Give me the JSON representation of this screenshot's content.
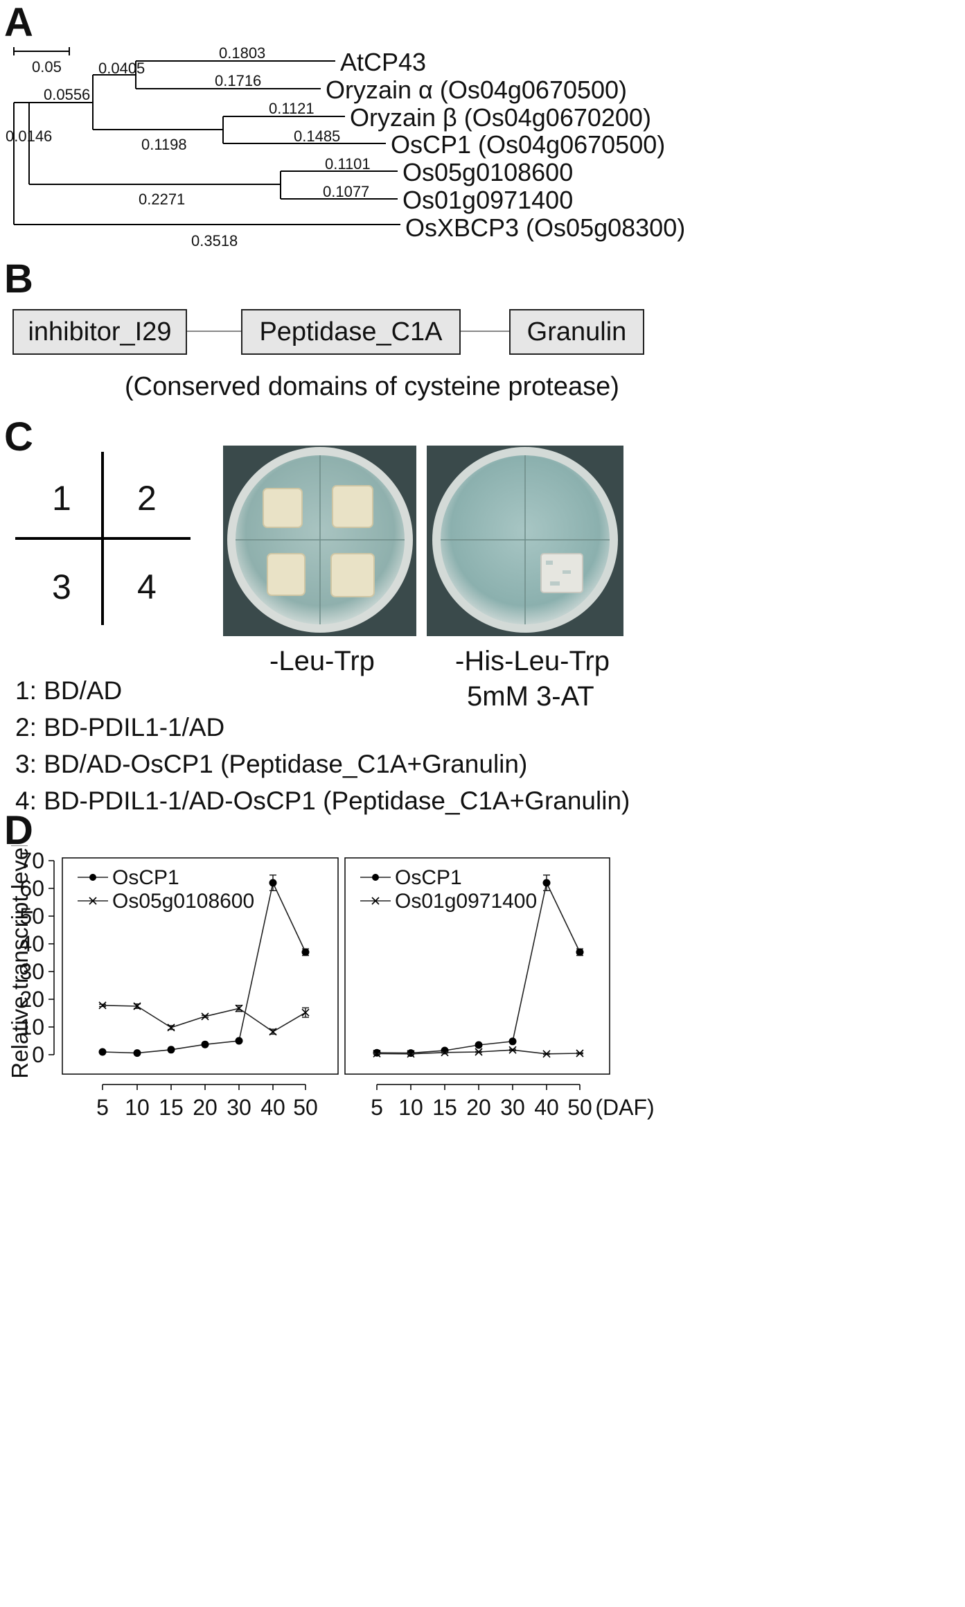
{
  "panels": {
    "A": "A",
    "B": "B",
    "C": "C",
    "D": "D"
  },
  "tree": {
    "scale_value": "0.05",
    "leaves": [
      "AtCP43",
      "Oryzain α (Os04g0670500)",
      "Oryzain β (Os04g0670200)",
      "OsCP1 (Os04g0670500)",
      "Os05g0108600",
      "Os01g0971400",
      "OsXBCP3 (Os05g08300)"
    ],
    "branch_lengths": {
      "atcp43": "0.1803",
      "oryzain_alpha": "0.1716",
      "ab_clade": "0.0405",
      "oryzain_beta": "0.1121",
      "oscp1": "0.1485",
      "bo_clade": "0.1198",
      "upper_clade": "0.0556",
      "os05g": "0.1101",
      "os01g": "0.1077",
      "os_pair": "0.2271",
      "root_inner": "0.0146",
      "osxbcp3": "0.3518"
    }
  },
  "domains": {
    "boxes": [
      "inhibitor_I29",
      "Peptidase_C1A",
      "Granulin"
    ],
    "caption": "(Conserved domains of cysteine protease)"
  },
  "y2h": {
    "quadrants": [
      "1",
      "2",
      "3",
      "4"
    ],
    "plate_labels": {
      "left": "-Leu-Trp",
      "right_line1": "-His-Leu-Trp",
      "right_line2": "5mM 3-AT"
    },
    "legend": [
      "1: BD/AD",
      "2: BD-PDIL1-1/AD",
      "3: BD/AD-OsCP1 (Peptidase_C1A+Granulin)",
      "4: BD-PDIL1-1/AD-OsCP1 (Peptidase_C1A+Granulin)"
    ],
    "growth": {
      "left_plate": [
        true,
        true,
        true,
        true
      ],
      "right_plate": [
        false,
        false,
        false,
        true
      ]
    }
  },
  "chart_data": [
    {
      "type": "line",
      "ylabel": "Relative transcript level",
      "ylim": [
        0,
        70
      ],
      "yticks": [
        0,
        10,
        20,
        30,
        40,
        50,
        60,
        70
      ],
      "categories": [
        "5",
        "10",
        "15",
        "20",
        "30",
        "40",
        "50"
      ],
      "series": [
        {
          "name": "OsCP1",
          "marker": "dot",
          "values": [
            1.0,
            0.6,
            1.8,
            3.7,
            5.0,
            62.0,
            37.0
          ],
          "errors": [
            0.3,
            0.3,
            0.3,
            0.4,
            0.4,
            2.8,
            1.2
          ]
        },
        {
          "name": "Os05g0108600",
          "marker": "x",
          "values": [
            17.8,
            17.5,
            9.8,
            13.8,
            16.7,
            8.3,
            15.2
          ],
          "errors": [
            0.4,
            0.8,
            0.7,
            0.4,
            1.1,
            0.9,
            1.7
          ]
        }
      ]
    },
    {
      "type": "line",
      "xunit": "(DAF)",
      "ylim": [
        0,
        70
      ],
      "categories": [
        "5",
        "10",
        "15",
        "20",
        "30",
        "40",
        "50"
      ],
      "series": [
        {
          "name": "OsCP1",
          "marker": "dot",
          "values": [
            0.7,
            0.6,
            1.5,
            3.5,
            4.8,
            62.0,
            37.0
          ],
          "errors": [
            0.3,
            0.3,
            0.3,
            0.4,
            0.4,
            2.8,
            1.2
          ]
        },
        {
          "name": "Os01g0971400",
          "marker": "x",
          "values": [
            0.4,
            0.3,
            0.8,
            1.0,
            1.7,
            0.3,
            0.5
          ],
          "errors": [
            0.2,
            0.2,
            0.2,
            0.2,
            0.3,
            0.2,
            0.2
          ]
        }
      ]
    }
  ]
}
